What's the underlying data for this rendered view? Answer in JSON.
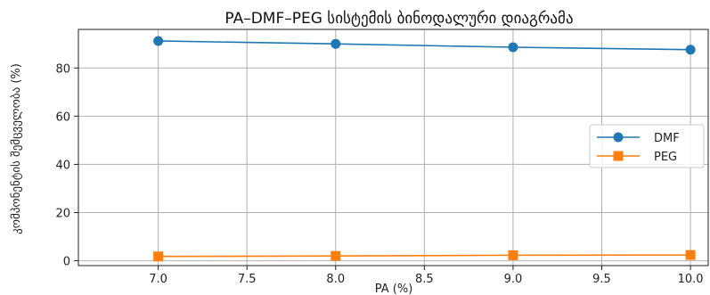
{
  "chart_data": {
    "type": "line",
    "title": "PA–DMF–PEG სისტემის ბინოდალური დიაგრამა",
    "xlabel": "PA (%)",
    "ylabel": "კომპონენტის შემცველობა (%)",
    "x": [
      7.0,
      8.0,
      9.0,
      10.0
    ],
    "xlim": [
      6.55,
      10.1
    ],
    "ylim": [
      -2,
      96
    ],
    "x_ticks": [
      "7.0",
      "7.5",
      "8.0",
      "8.5",
      "9.0",
      "9.5",
      "10.0"
    ],
    "y_ticks": [
      "0",
      "20",
      "40",
      "60",
      "80"
    ],
    "grid": true,
    "legend_position": "right",
    "series": [
      {
        "name": "DMF",
        "values": [
          91.2,
          90.0,
          88.6,
          87.6
        ],
        "color": "#1f77b4",
        "marker": "circle"
      },
      {
        "name": "PEG",
        "values": [
          1.8,
          2.0,
          2.3,
          2.4
        ],
        "color": "#ff7f0e",
        "marker": "square"
      }
    ]
  }
}
